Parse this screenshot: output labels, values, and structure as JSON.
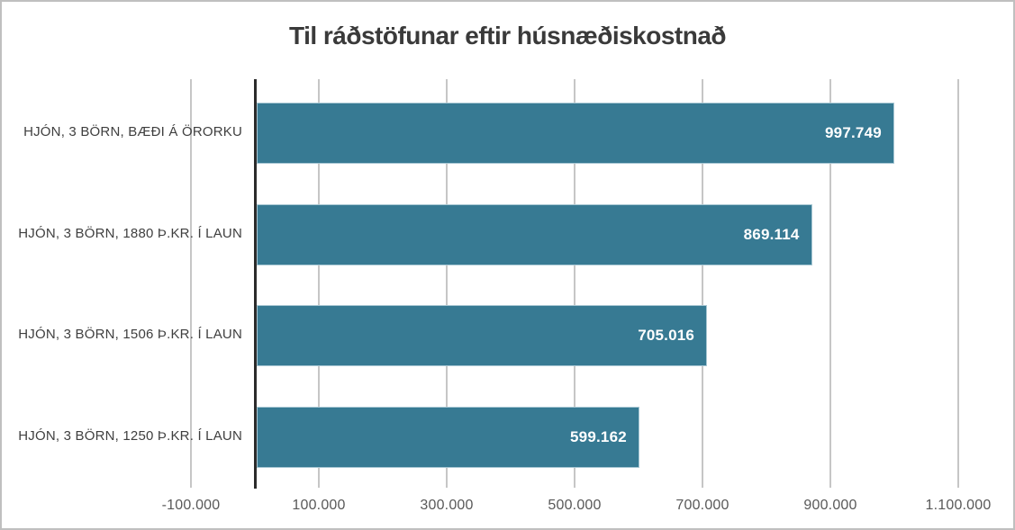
{
  "window": {
    "background_color": "#ffffff",
    "border_color": "#bfbfbf"
  },
  "chart_data": {
    "type": "bar",
    "orientation": "horizontal",
    "title": "Til ráðstöfunar eftir húsnæðiskostnað",
    "categories": [
      "HJÓN, 3 BÖRN, BÆÐI Á ÖRORKU",
      "HJÓN, 3 BÖRN, 1880 Þ.KR. Í LAUN",
      "HJÓN, 3 BÖRN, 1506 Þ.KR. Í LAUN",
      "HJÓN, 3 BÖRN, 1250 Þ.KR. Í LAUN"
    ],
    "values": [
      997749,
      869114,
      705016,
      599162
    ],
    "data_labels": [
      "997.749",
      "869.114",
      "705.016",
      "599.162"
    ],
    "x_ticks": [
      {
        "value": -100000,
        "label": "-100.000"
      },
      {
        "value": 100000,
        "label": "100.000"
      },
      {
        "value": 300000,
        "label": "300.000"
      },
      {
        "value": 500000,
        "label": "500.000"
      },
      {
        "value": 700000,
        "label": "700.000"
      },
      {
        "value": 900000,
        "label": "900.000"
      },
      {
        "value": 1100000,
        "label": "1.100.000"
      }
    ],
    "xlim": [
      -200000,
      1200000
    ],
    "xlabel": "",
    "ylabel": "",
    "grid": true,
    "legend": false,
    "bar_color": "#377a93",
    "bar_border_color": "#a9c8d4",
    "data_label_color": "#ffffff",
    "gridline_color": "#c6c6c6",
    "zero_axis_color": "#2b2b2b",
    "title_color": "#3a3a3a",
    "category_label_color": "#3f3f3f",
    "tick_label_color": "#595959"
  }
}
